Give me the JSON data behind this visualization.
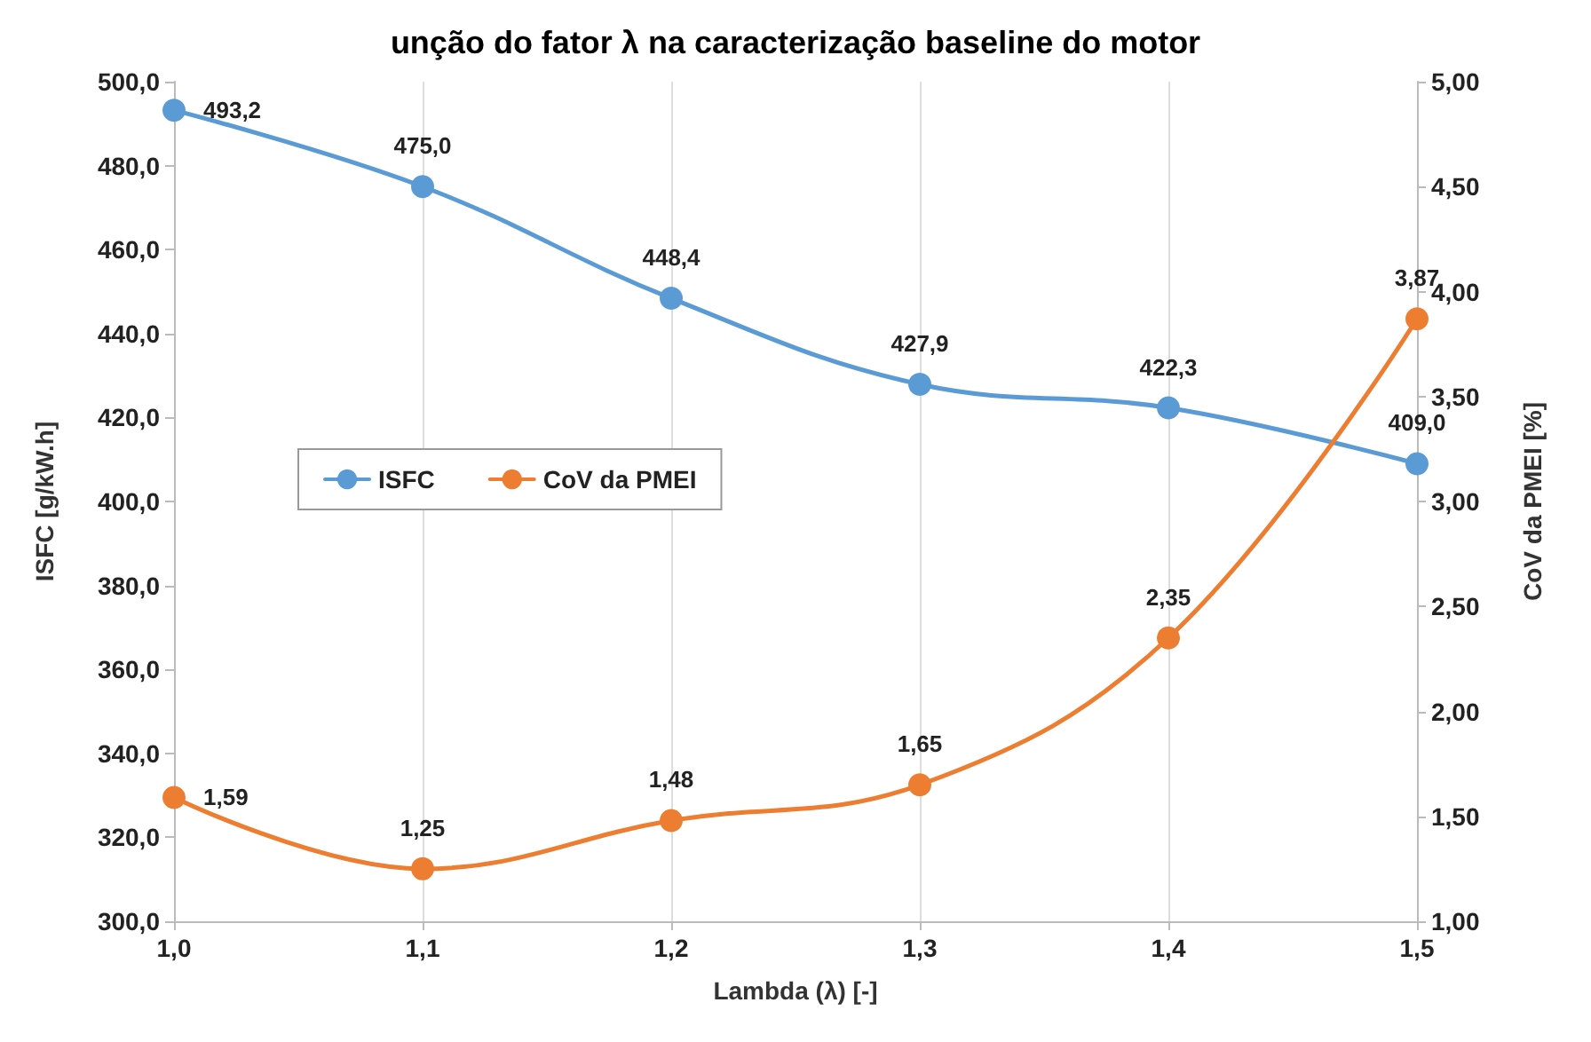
{
  "chart_data": {
    "type": "line",
    "title": "unção do fator λ na caracterização baseline do motor",
    "xlabel": "Lambda (λ) [-]",
    "ylabel": "ISFC [g/kW.h]",
    "y2label": "CoV da PMEI [%]",
    "x": [
      1.0,
      1.1,
      1.2,
      1.3,
      1.4,
      1.5
    ],
    "series": [
      {
        "name": "ISFC",
        "color": "#5b9bd5",
        "values": [
          493.2,
          475.0,
          448.4,
          427.9,
          422.3,
          409.0
        ],
        "value_labels": [
          "493,2",
          "475,0",
          "448,4",
          "427,9",
          "422,3",
          "409,0"
        ]
      },
      {
        "name": "CoV da PMEI",
        "color": "#ed7d31",
        "axis": "y2",
        "values": [
          1.59,
          1.25,
          1.48,
          1.65,
          2.35,
          3.87
        ],
        "value_labels": [
          "1,59",
          "1,25",
          "1,48",
          "1,65",
          "2,35",
          "3,87"
        ]
      }
    ],
    "xlim": [
      1.0,
      1.5
    ],
    "xticks": [
      {
        "value": 1.0,
        "label": "1,0"
      },
      {
        "value": 1.1,
        "label": "1,1"
      },
      {
        "value": 1.2,
        "label": "1,2"
      },
      {
        "value": 1.3,
        "label": "1,3"
      },
      {
        "value": 1.4,
        "label": "1,4"
      },
      {
        "value": 1.5,
        "label": "1,5"
      }
    ],
    "ylim": [
      300,
      500
    ],
    "yticks": [
      {
        "value": 300,
        "label": "300,0"
      },
      {
        "value": 320,
        "label": "320,0"
      },
      {
        "value": 340,
        "label": "340,0"
      },
      {
        "value": 360,
        "label": "360,0"
      },
      {
        "value": 380,
        "label": "380,0"
      },
      {
        "value": 400,
        "label": "400,0"
      },
      {
        "value": 420,
        "label": "420,0"
      },
      {
        "value": 440,
        "label": "440,0"
      },
      {
        "value": 460,
        "label": "460,0"
      },
      {
        "value": 480,
        "label": "480,0"
      },
      {
        "value": 500,
        "label": "500,0"
      }
    ],
    "y2lim": [
      1,
      5
    ],
    "y2ticks": [
      {
        "value": 1,
        "label": "1,00"
      },
      {
        "value": 1.5,
        "label": "1,50"
      },
      {
        "value": 2,
        "label": "2,00"
      },
      {
        "value": 2.5,
        "label": "2,50"
      },
      {
        "value": 3,
        "label": "3,00"
      },
      {
        "value": 3.5,
        "label": "3,50"
      },
      {
        "value": 4,
        "label": "4,00"
      },
      {
        "value": 4.5,
        "label": "4,50"
      },
      {
        "value": 5,
        "label": "5,00"
      }
    ],
    "grid": "x",
    "legend": "left",
    "marker": "circle",
    "line_style": "solid"
  }
}
